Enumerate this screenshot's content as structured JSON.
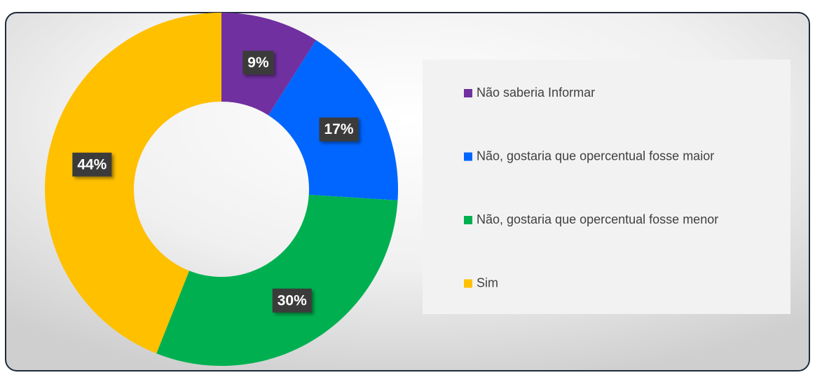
{
  "chart_data": {
    "type": "donut",
    "categories": [
      "Não saberia Informar",
      "Não, gostaria que opercentual fosse maior",
      "Não, gostaria que opercentual fosse menor",
      "Sim"
    ],
    "values": [
      9,
      17,
      30,
      44
    ],
    "value_labels": [
      "9%",
      "17%",
      "30%",
      "44%"
    ],
    "colors": [
      "#7030a0",
      "#0066ff",
      "#00b050",
      "#ffc000"
    ],
    "legend": "right"
  }
}
